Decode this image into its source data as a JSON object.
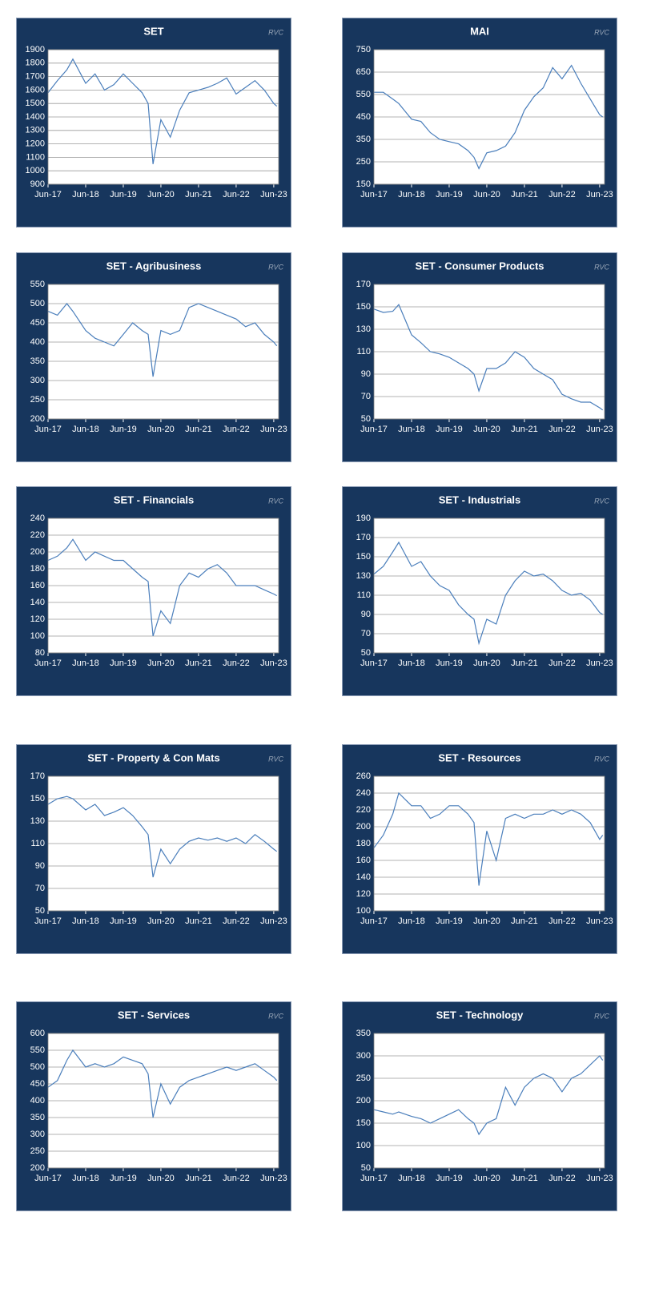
{
  "chart_data": [
    {
      "type": "line",
      "title": "SET",
      "watermark": "RVC",
      "grid": true,
      "color": "#4a7ebb",
      "x": [
        2017.42,
        2017.67,
        2017.92,
        2018.08,
        2018.42,
        2018.67,
        2018.92,
        2019.17,
        2019.42,
        2019.67,
        2019.92,
        2020.08,
        2020.21,
        2020.42,
        2020.67,
        2020.92,
        2021.17,
        2021.42,
        2021.67,
        2021.92,
        2022.17,
        2022.42,
        2022.67,
        2022.92,
        2023.17,
        2023.42,
        2023.5
      ],
      "values": [
        1580,
        1670,
        1750,
        1830,
        1650,
        1720,
        1600,
        1640,
        1720,
        1650,
        1580,
        1500,
        1050,
        1380,
        1250,
        1450,
        1580,
        1600,
        1620,
        1650,
        1690,
        1570,
        1620,
        1670,
        1600,
        1500,
        1480
      ],
      "xlim": [
        2017.42,
        2023.55
      ],
      "xticks": [
        {
          "value": 2017.42,
          "label": "Jun-17"
        },
        {
          "value": 2018.42,
          "label": "Jun-18"
        },
        {
          "value": 2019.42,
          "label": "Jun-19"
        },
        {
          "value": 2020.42,
          "label": "Jun-20"
        },
        {
          "value": 2021.42,
          "label": "Jun-21"
        },
        {
          "value": 2022.42,
          "label": "Jun-22"
        },
        {
          "value": 2023.42,
          "label": "Jun-23"
        }
      ],
      "ylim": [
        900,
        1900
      ],
      "yticks": [
        900,
        1000,
        1100,
        1200,
        1300,
        1400,
        1500,
        1600,
        1700,
        1800,
        1900
      ]
    },
    {
      "type": "line",
      "title": "MAI",
      "watermark": "RVC",
      "grid": true,
      "color": "#4a7ebb",
      "x": [
        2017.42,
        2017.67,
        2017.92,
        2018.08,
        2018.42,
        2018.67,
        2018.92,
        2019.17,
        2019.42,
        2019.67,
        2019.92,
        2020.08,
        2020.21,
        2020.42,
        2020.67,
        2020.92,
        2021.17,
        2021.42,
        2021.67,
        2021.92,
        2022.17,
        2022.42,
        2022.67,
        2022.92,
        2023.17,
        2023.42,
        2023.5
      ],
      "values": [
        560,
        560,
        530,
        510,
        440,
        430,
        380,
        350,
        340,
        330,
        300,
        270,
        220,
        290,
        300,
        320,
        380,
        480,
        540,
        580,
        670,
        620,
        680,
        600,
        530,
        460,
        450
      ],
      "xlim": [
        2017.42,
        2023.55
      ],
      "xticks": [
        {
          "value": 2017.42,
          "label": "Jun-17"
        },
        {
          "value": 2018.42,
          "label": "Jun-18"
        },
        {
          "value": 2019.42,
          "label": "Jun-19"
        },
        {
          "value": 2020.42,
          "label": "Jun-20"
        },
        {
          "value": 2021.42,
          "label": "Jun-21"
        },
        {
          "value": 2022.42,
          "label": "Jun-22"
        },
        {
          "value": 2023.42,
          "label": "Jun-23"
        }
      ],
      "ylim": [
        150,
        750
      ],
      "yticks": [
        150,
        250,
        350,
        450,
        550,
        650,
        750
      ]
    },
    {
      "type": "line",
      "title": "SET - Agribusiness",
      "watermark": "RVC",
      "grid": true,
      "color": "#4a7ebb",
      "x": [
        2017.42,
        2017.67,
        2017.92,
        2018.08,
        2018.42,
        2018.67,
        2018.92,
        2019.17,
        2019.42,
        2019.67,
        2019.92,
        2020.08,
        2020.21,
        2020.42,
        2020.67,
        2020.92,
        2021.17,
        2021.42,
        2021.67,
        2021.92,
        2022.17,
        2022.42,
        2022.67,
        2022.92,
        2023.17,
        2023.42,
        2023.5
      ],
      "values": [
        480,
        470,
        500,
        480,
        430,
        410,
        400,
        390,
        420,
        450,
        430,
        420,
        310,
        430,
        420,
        430,
        490,
        500,
        490,
        480,
        470,
        460,
        440,
        450,
        420,
        400,
        390
      ],
      "xlim": [
        2017.42,
        2023.55
      ],
      "xticks": [
        {
          "value": 2017.42,
          "label": "Jun-17"
        },
        {
          "value": 2018.42,
          "label": "Jun-18"
        },
        {
          "value": 2019.42,
          "label": "Jun-19"
        },
        {
          "value": 2020.42,
          "label": "Jun-20"
        },
        {
          "value": 2021.42,
          "label": "Jun-21"
        },
        {
          "value": 2022.42,
          "label": "Jun-22"
        },
        {
          "value": 2023.42,
          "label": "Jun-23"
        }
      ],
      "ylim": [
        200,
        550
      ],
      "yticks": [
        200,
        250,
        300,
        350,
        400,
        450,
        500,
        550
      ]
    },
    {
      "type": "line",
      "title": "SET - Consumer Products",
      "watermark": "RVC",
      "grid": true,
      "color": "#4a7ebb",
      "x": [
        2017.42,
        2017.67,
        2017.92,
        2018.08,
        2018.42,
        2018.67,
        2018.92,
        2019.17,
        2019.42,
        2019.67,
        2019.92,
        2020.08,
        2020.21,
        2020.42,
        2020.67,
        2020.92,
        2021.17,
        2021.42,
        2021.67,
        2021.92,
        2022.17,
        2022.42,
        2022.67,
        2022.92,
        2023.17,
        2023.42,
        2023.5
      ],
      "values": [
        148,
        145,
        146,
        152,
        125,
        118,
        110,
        108,
        105,
        100,
        95,
        90,
        75,
        95,
        95,
        100,
        110,
        105,
        95,
        90,
        85,
        72,
        68,
        65,
        65,
        60,
        58
      ],
      "xlim": [
        2017.42,
        2023.55
      ],
      "xticks": [
        {
          "value": 2017.42,
          "label": "Jun-17"
        },
        {
          "value": 2018.42,
          "label": "Jun-18"
        },
        {
          "value": 2019.42,
          "label": "Jun-19"
        },
        {
          "value": 2020.42,
          "label": "Jun-20"
        },
        {
          "value": 2021.42,
          "label": "Jun-21"
        },
        {
          "value": 2022.42,
          "label": "Jun-22"
        },
        {
          "value": 2023.42,
          "label": "Jun-23"
        }
      ],
      "ylim": [
        50,
        170
      ],
      "yticks": [
        50,
        70,
        90,
        110,
        130,
        150,
        170
      ]
    },
    {
      "type": "line",
      "title": "SET - Financials",
      "watermark": "RVC",
      "grid": true,
      "color": "#4a7ebb",
      "x": [
        2017.42,
        2017.67,
        2017.92,
        2018.08,
        2018.42,
        2018.67,
        2018.92,
        2019.17,
        2019.42,
        2019.67,
        2019.92,
        2020.08,
        2020.21,
        2020.42,
        2020.67,
        2020.92,
        2021.17,
        2021.42,
        2021.67,
        2021.92,
        2022.17,
        2022.42,
        2022.67,
        2022.92,
        2023.17,
        2023.42,
        2023.5
      ],
      "values": [
        190,
        195,
        205,
        215,
        190,
        200,
        195,
        190,
        190,
        180,
        170,
        165,
        100,
        130,
        115,
        160,
        175,
        170,
        180,
        185,
        175,
        160,
        160,
        160,
        155,
        150,
        148
      ],
      "xlim": [
        2017.42,
        2023.55
      ],
      "xticks": [
        {
          "value": 2017.42,
          "label": "Jun-17"
        },
        {
          "value": 2018.42,
          "label": "Jun-18"
        },
        {
          "value": 2019.42,
          "label": "Jun-19"
        },
        {
          "value": 2020.42,
          "label": "Jun-20"
        },
        {
          "value": 2021.42,
          "label": "Jun-21"
        },
        {
          "value": 2022.42,
          "label": "Jun-22"
        },
        {
          "value": 2023.42,
          "label": "Jun-23"
        }
      ],
      "ylim": [
        80,
        240
      ],
      "yticks": [
        80,
        100,
        120,
        140,
        160,
        180,
        200,
        220,
        240
      ]
    },
    {
      "type": "line",
      "title": "SET - Industrials",
      "watermark": "RVC",
      "grid": true,
      "color": "#4a7ebb",
      "x": [
        2017.42,
        2017.67,
        2017.92,
        2018.08,
        2018.42,
        2018.67,
        2018.92,
        2019.17,
        2019.42,
        2019.67,
        2019.92,
        2020.08,
        2020.21,
        2020.42,
        2020.67,
        2020.92,
        2021.17,
        2021.42,
        2021.67,
        2021.92,
        2022.17,
        2022.42,
        2022.67,
        2022.92,
        2023.17,
        2023.42,
        2023.5
      ],
      "values": [
        132,
        140,
        155,
        165,
        140,
        145,
        130,
        120,
        115,
        100,
        90,
        85,
        60,
        85,
        80,
        110,
        125,
        135,
        130,
        132,
        125,
        115,
        110,
        112,
        105,
        92,
        90
      ],
      "xlim": [
        2017.42,
        2023.55
      ],
      "xticks": [
        {
          "value": 2017.42,
          "label": "Jun-17"
        },
        {
          "value": 2018.42,
          "label": "Jun-18"
        },
        {
          "value": 2019.42,
          "label": "Jun-19"
        },
        {
          "value": 2020.42,
          "label": "Jun-20"
        },
        {
          "value": 2021.42,
          "label": "Jun-21"
        },
        {
          "value": 2022.42,
          "label": "Jun-22"
        },
        {
          "value": 2023.42,
          "label": "Jun-23"
        }
      ],
      "ylim": [
        50,
        190
      ],
      "yticks": [
        50,
        70,
        90,
        110,
        130,
        150,
        170,
        190
      ]
    },
    {
      "type": "line",
      "title": "SET - Property & Con Mats",
      "watermark": "RVC",
      "grid": true,
      "color": "#4a7ebb",
      "x": [
        2017.42,
        2017.67,
        2017.92,
        2018.08,
        2018.42,
        2018.67,
        2018.92,
        2019.17,
        2019.42,
        2019.67,
        2019.92,
        2020.08,
        2020.21,
        2020.42,
        2020.67,
        2020.92,
        2021.17,
        2021.42,
        2021.67,
        2021.92,
        2022.17,
        2022.42,
        2022.67,
        2022.92,
        2023.17,
        2023.42,
        2023.5
      ],
      "values": [
        145,
        150,
        152,
        150,
        140,
        145,
        135,
        138,
        142,
        135,
        125,
        118,
        80,
        105,
        92,
        105,
        112,
        115,
        113,
        115,
        112,
        115,
        110,
        118,
        112,
        105,
        103
      ],
      "xlim": [
        2017.42,
        2023.55
      ],
      "xticks": [
        {
          "value": 2017.42,
          "label": "Jun-17"
        },
        {
          "value": 2018.42,
          "label": "Jun-18"
        },
        {
          "value": 2019.42,
          "label": "Jun-19"
        },
        {
          "value": 2020.42,
          "label": "Jun-20"
        },
        {
          "value": 2021.42,
          "label": "Jun-21"
        },
        {
          "value": 2022.42,
          "label": "Jun-22"
        },
        {
          "value": 2023.42,
          "label": "Jun-23"
        }
      ],
      "ylim": [
        50,
        170
      ],
      "yticks": [
        50,
        70,
        90,
        110,
        130,
        150,
        170
      ]
    },
    {
      "type": "line",
      "title": "SET - Resources",
      "watermark": "RVC",
      "grid": true,
      "color": "#4a7ebb",
      "x": [
        2017.42,
        2017.67,
        2017.92,
        2018.08,
        2018.42,
        2018.67,
        2018.92,
        2019.17,
        2019.42,
        2019.67,
        2019.92,
        2020.08,
        2020.21,
        2020.42,
        2020.67,
        2020.92,
        2021.17,
        2021.42,
        2021.67,
        2021.92,
        2022.17,
        2022.42,
        2022.67,
        2022.92,
        2023.17,
        2023.42,
        2023.5
      ],
      "values": [
        175,
        190,
        215,
        240,
        225,
        225,
        210,
        215,
        225,
        225,
        215,
        205,
        130,
        195,
        160,
        210,
        215,
        210,
        215,
        215,
        220,
        215,
        220,
        215,
        205,
        185,
        190
      ],
      "xlim": [
        2017.42,
        2023.55
      ],
      "xticks": [
        {
          "value": 2017.42,
          "label": "Jun-17"
        },
        {
          "value": 2018.42,
          "label": "Jun-18"
        },
        {
          "value": 2019.42,
          "label": "Jun-19"
        },
        {
          "value": 2020.42,
          "label": "Jun-20"
        },
        {
          "value": 2021.42,
          "label": "Jun-21"
        },
        {
          "value": 2022.42,
          "label": "Jun-22"
        },
        {
          "value": 2023.42,
          "label": "Jun-23"
        }
      ],
      "ylim": [
        100,
        260
      ],
      "yticks": [
        100,
        120,
        140,
        160,
        180,
        200,
        220,
        240,
        260
      ]
    },
    {
      "type": "line",
      "title": "SET - Services",
      "watermark": "RVC",
      "grid": true,
      "color": "#4a7ebb",
      "x": [
        2017.42,
        2017.67,
        2017.92,
        2018.08,
        2018.42,
        2018.67,
        2018.92,
        2019.17,
        2019.42,
        2019.67,
        2019.92,
        2020.08,
        2020.21,
        2020.42,
        2020.67,
        2020.92,
        2021.17,
        2021.42,
        2021.67,
        2021.92,
        2022.17,
        2022.42,
        2022.67,
        2022.92,
        2023.17,
        2023.42,
        2023.5
      ],
      "values": [
        440,
        460,
        520,
        550,
        500,
        510,
        500,
        510,
        530,
        520,
        510,
        480,
        350,
        450,
        390,
        440,
        460,
        470,
        480,
        490,
        500,
        490,
        500,
        510,
        490,
        470,
        460
      ],
      "xlim": [
        2017.42,
        2023.55
      ],
      "xticks": [
        {
          "value": 2017.42,
          "label": "Jun-17"
        },
        {
          "value": 2018.42,
          "label": "Jun-18"
        },
        {
          "value": 2019.42,
          "label": "Jun-19"
        },
        {
          "value": 2020.42,
          "label": "Jun-20"
        },
        {
          "value": 2021.42,
          "label": "Jun-21"
        },
        {
          "value": 2022.42,
          "label": "Jun-22"
        },
        {
          "value": 2023.42,
          "label": "Jun-23"
        }
      ],
      "ylim": [
        200,
        600
      ],
      "yticks": [
        200,
        250,
        300,
        350,
        400,
        450,
        500,
        550,
        600
      ]
    },
    {
      "type": "line",
      "title": "SET - Technology",
      "watermark": "RVC",
      "grid": true,
      "color": "#4a7ebb",
      "x": [
        2017.42,
        2017.67,
        2017.92,
        2018.08,
        2018.42,
        2018.67,
        2018.92,
        2019.17,
        2019.42,
        2019.67,
        2019.92,
        2020.08,
        2020.21,
        2020.42,
        2020.67,
        2020.92,
        2021.17,
        2021.42,
        2021.67,
        2021.92,
        2022.17,
        2022.42,
        2022.67,
        2022.92,
        2023.17,
        2023.42,
        2023.5
      ],
      "values": [
        180,
        175,
        170,
        175,
        165,
        160,
        150,
        160,
        170,
        180,
        160,
        150,
        125,
        150,
        160,
        230,
        190,
        230,
        250,
        260,
        250,
        220,
        250,
        260,
        280,
        300,
        290
      ],
      "xlim": [
        2017.42,
        2023.55
      ],
      "xticks": [
        {
          "value": 2017.42,
          "label": "Jun-17"
        },
        {
          "value": 2018.42,
          "label": "Jun-18"
        },
        {
          "value": 2019.42,
          "label": "Jun-19"
        },
        {
          "value": 2020.42,
          "label": "Jun-20"
        },
        {
          "value": 2021.42,
          "label": "Jun-21"
        },
        {
          "value": 2022.42,
          "label": "Jun-22"
        },
        {
          "value": 2023.42,
          "label": "Jun-23"
        }
      ],
      "ylim": [
        50,
        350
      ],
      "yticks": [
        50,
        100,
        150,
        200,
        250,
        300,
        350
      ]
    }
  ]
}
